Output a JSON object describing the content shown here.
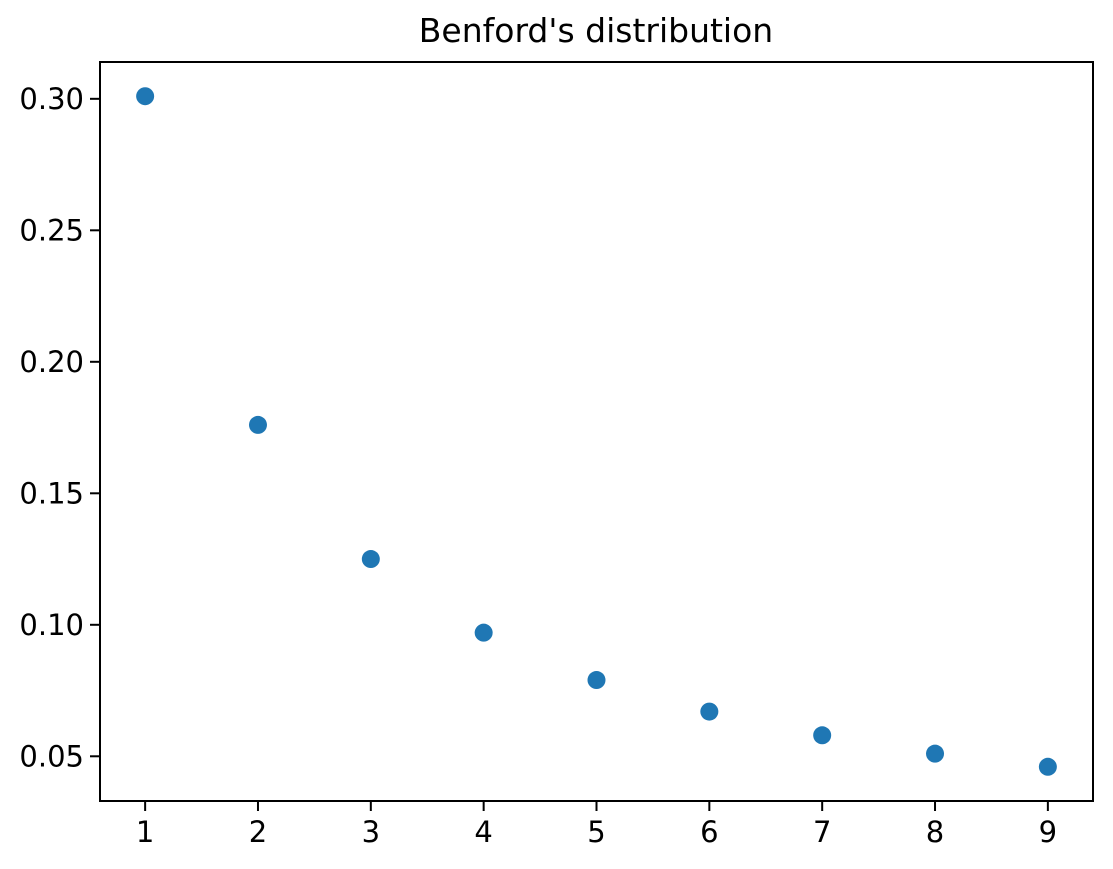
{
  "figure": {
    "background_color": "#ffffff"
  },
  "chart_data": {
    "type": "scatter",
    "title": "Benford's distribution",
    "x": [
      1,
      2,
      3,
      4,
      5,
      6,
      7,
      8,
      9
    ],
    "y": [
      0.301,
      0.176,
      0.125,
      0.097,
      0.079,
      0.067,
      0.058,
      0.051,
      0.046
    ],
    "xtick_values": [
      1,
      2,
      3,
      4,
      5,
      6,
      7,
      8,
      9
    ],
    "xtick_labels": [
      "1",
      "2",
      "3",
      "4",
      "5",
      "6",
      "7",
      "8",
      "9"
    ],
    "ytick_values": [
      0.05,
      0.1,
      0.15,
      0.2,
      0.25,
      0.3
    ],
    "ytick_labels": [
      "0.05",
      "0.10",
      "0.15",
      "0.20",
      "0.25",
      "0.30"
    ],
    "xlim": [
      0.6,
      9.4
    ],
    "ylim": [
      0.033,
      0.314
    ],
    "xlabel": "",
    "ylabel": "",
    "grid": false,
    "legend_position": "none",
    "marker_color": "#1f77b4",
    "axis_color": "#000000"
  }
}
